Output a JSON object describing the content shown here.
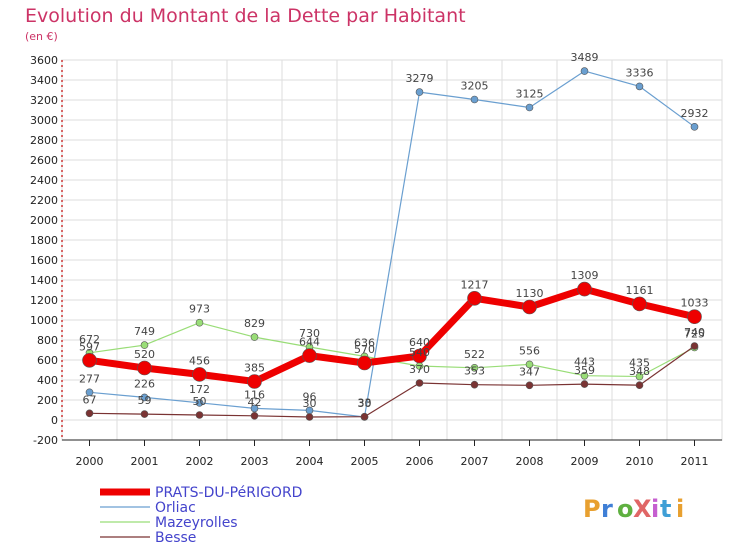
{
  "chart_data": {
    "type": "line",
    "title": "Evolution du Montant de la Dette par Habitant",
    "subtitle": "(en €)",
    "x": [
      "2000",
      "2001",
      "2002",
      "2003",
      "2004",
      "2005",
      "2006",
      "2007",
      "2008",
      "2009",
      "2010",
      "2011"
    ],
    "ylim": [
      -200,
      3600
    ],
    "yticks": [
      -200,
      0,
      200,
      400,
      600,
      800,
      1000,
      1200,
      1400,
      1600,
      1800,
      2000,
      2200,
      2400,
      2600,
      2800,
      3000,
      3200,
      3400,
      3600
    ],
    "grid": true,
    "legend_position": "bottom-left",
    "series": [
      {
        "name": "Orliac",
        "color": "#6a9fd0",
        "values": [
          277,
          226,
          172,
          116,
          96,
          30,
          3279,
          3205,
          3125,
          3489,
          3336,
          2932
        ]
      },
      {
        "name": "Mazeyrolles",
        "color": "#99dd77",
        "values": [
          672,
          749,
          973,
          829,
          730,
          636,
          540,
          522,
          556,
          443,
          435,
          725
        ]
      },
      {
        "name": "Besse",
        "color": "#7a3333",
        "values": [
          67,
          59,
          50,
          42,
          30,
          33,
          370,
          353,
          347,
          359,
          348,
          740
        ]
      },
      {
        "name": "PRATS-DU-PéRIGORD",
        "color": "#ee0000",
        "values": [
          597,
          520,
          456,
          385,
          644,
          570,
          640,
          1217,
          1130,
          1309,
          1161,
          1033
        ]
      }
    ],
    "legend_order": [
      "PRATS-DU-PéRIGORD",
      "Orliac",
      "Mazeyrolles",
      "Besse"
    ]
  },
  "logo": {
    "text": "ProXiti"
  },
  "colors": {
    "title": "#cc3366",
    "background": "#ffffff",
    "legend_text": "#4444cc"
  }
}
